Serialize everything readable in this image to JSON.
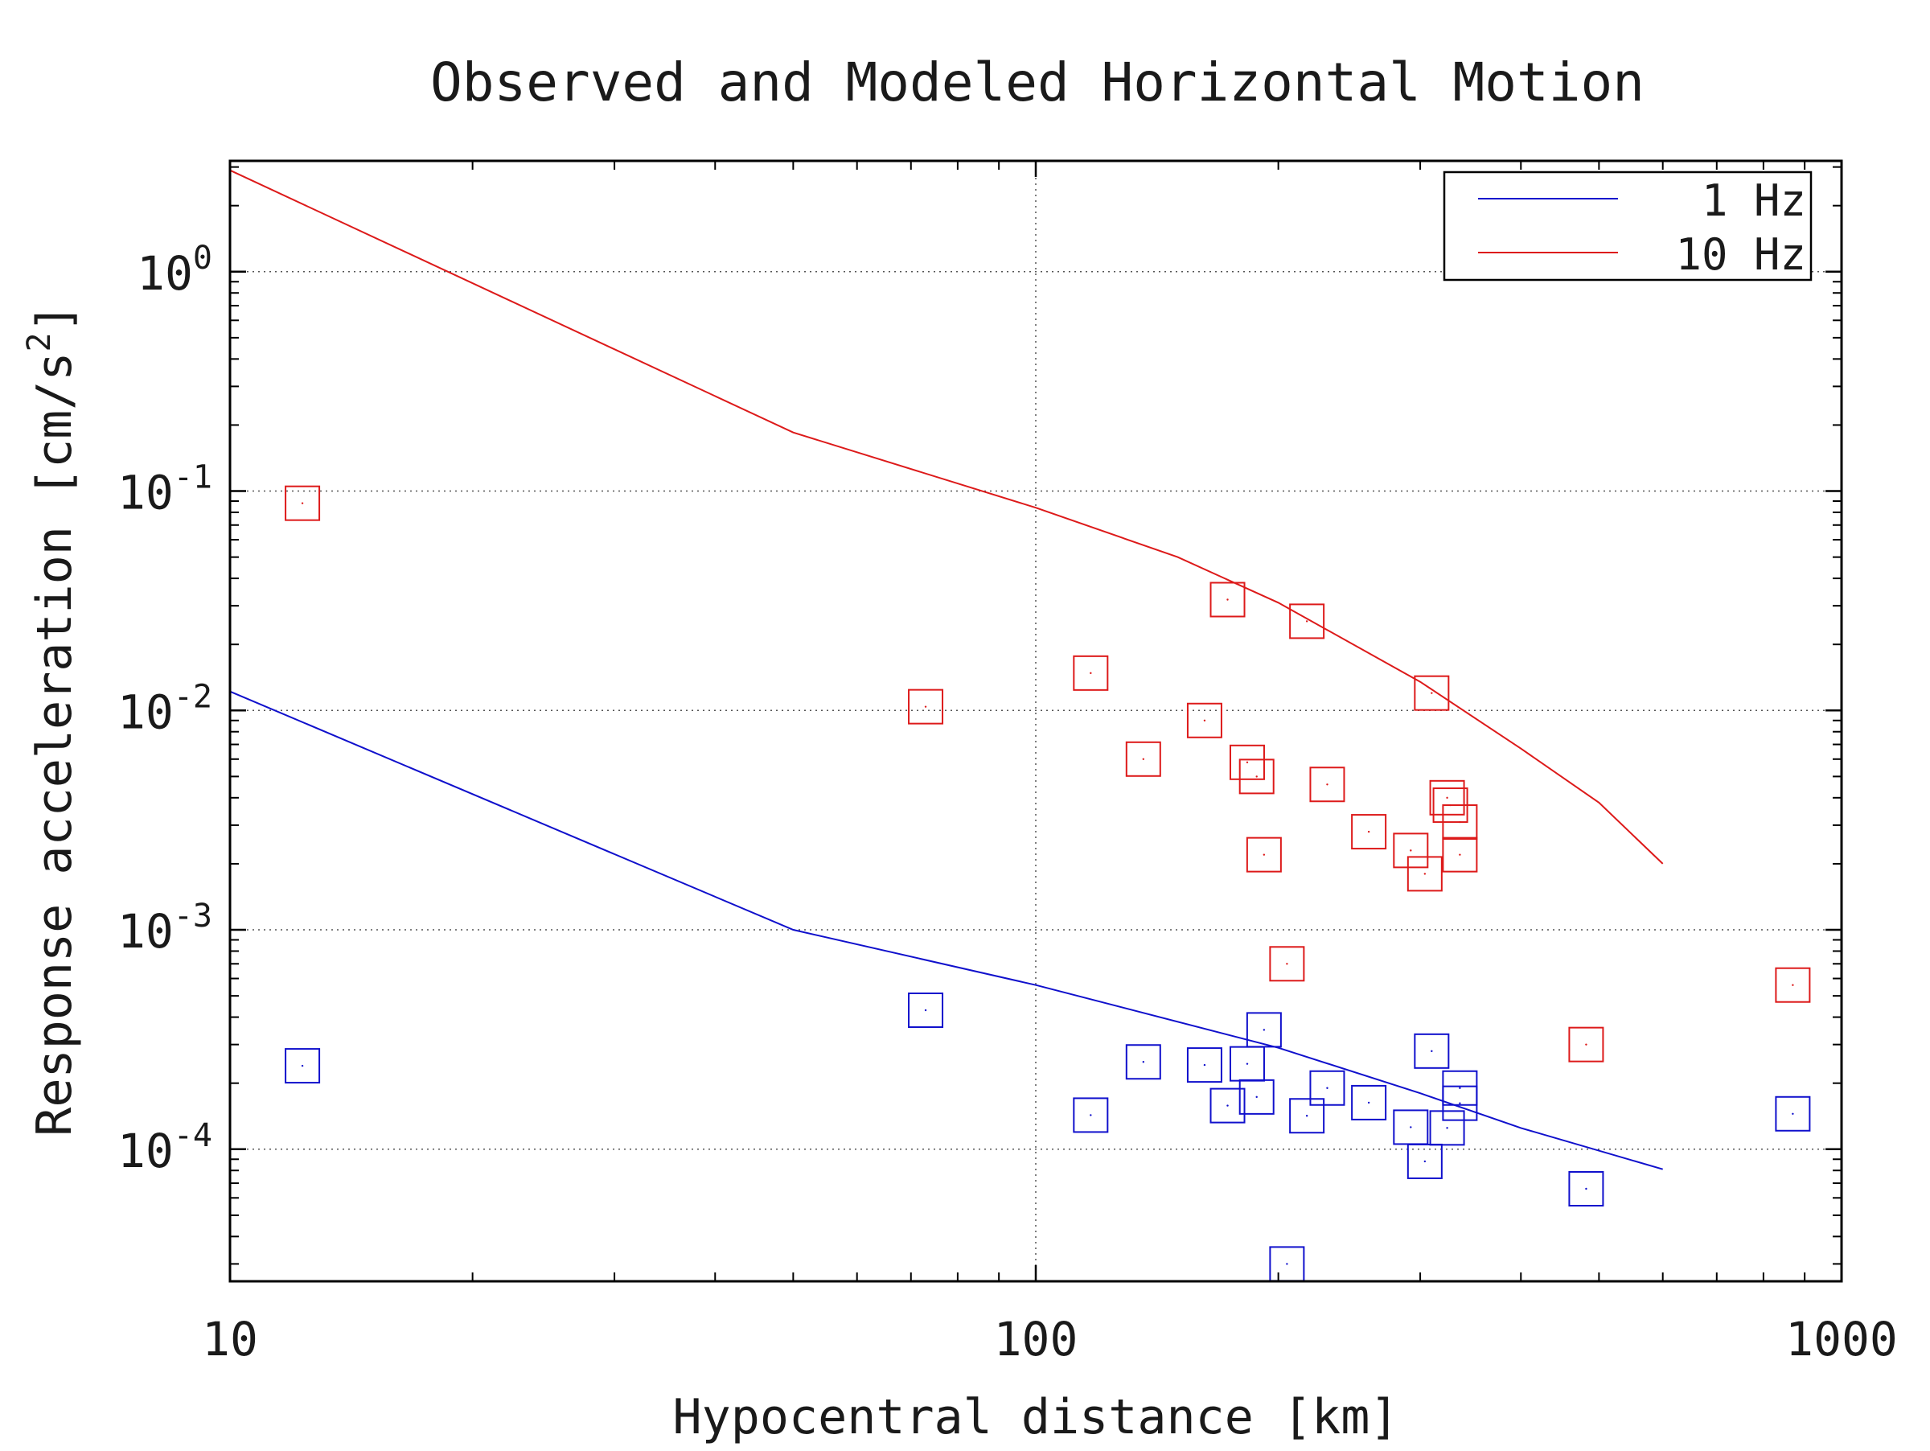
{
  "chart_data": {
    "type": "scatter",
    "title": "Observed and Modeled Horizontal Motion",
    "xlabel": "Hypocentral distance [km]",
    "ylabel": "Response acceleration [cm/s",
    "ylabel_sup": "2",
    "ylabel_close": "]",
    "x_scale": "log",
    "y_scale": "log",
    "xlim": [
      10,
      1000
    ],
    "ylim": [
      2.5e-05,
      3.2
    ],
    "x_ticks": [
      {
        "value": 10,
        "label": "10"
      },
      {
        "value": 100,
        "label": "100"
      },
      {
        "value": 1000,
        "label": "1000"
      }
    ],
    "y_ticks": [
      {
        "value": 1,
        "base": "10",
        "exp": "0"
      },
      {
        "value": 0.1,
        "base": "10",
        "exp": "-1"
      },
      {
        "value": 0.01,
        "base": "10",
        "exp": "-2"
      },
      {
        "value": 0.001,
        "base": "10",
        "exp": "-3"
      },
      {
        "value": 0.0001,
        "base": "10",
        "exp": "-4"
      }
    ],
    "grid": "dotted",
    "legend_position": "top-right",
    "series": [
      {
        "name": "1 Hz",
        "color": "#1010cc",
        "model": [
          [
            10,
            0.0122
          ],
          [
            50,
            0.001
          ],
          [
            100,
            0.00056
          ],
          [
            200,
            0.00029
          ],
          [
            300,
            0.00018
          ],
          [
            400,
            0.000125
          ],
          [
            600,
            8.1e-05
          ]
        ],
        "points": [
          [
            12.3,
            0.00024
          ],
          [
            73,
            0.00043
          ],
          [
            117,
            0.000143
          ],
          [
            136,
            0.00025
          ],
          [
            162,
            0.000242
          ],
          [
            173,
            0.000158
          ],
          [
            183,
            0.000245
          ],
          [
            188,
            0.000173
          ],
          [
            192,
            0.00035
          ],
          [
            205,
            3e-05
          ],
          [
            217,
            0.000142
          ],
          [
            230,
            0.00019
          ],
          [
            259,
            0.000163
          ],
          [
            292,
            0.000126
          ],
          [
            304,
            8.8e-05
          ],
          [
            310,
            0.00028
          ],
          [
            324,
            0.000125
          ],
          [
            336,
            0.00019
          ],
          [
            336,
            0.000162
          ],
          [
            482,
            6.6e-05
          ],
          [
            870,
            0.000145
          ]
        ]
      },
      {
        "name": "10 Hz",
        "color": "#dd1a1a",
        "model": [
          [
            10,
            2.9
          ],
          [
            50,
            0.185
          ],
          [
            100,
            0.084
          ],
          [
            150,
            0.05
          ],
          [
            200,
            0.031
          ],
          [
            300,
            0.0135
          ],
          [
            400,
            0.0067
          ],
          [
            500,
            0.0038
          ],
          [
            600,
            0.002
          ]
        ],
        "points": [
          [
            12.3,
            0.088
          ],
          [
            73,
            0.0104
          ],
          [
            117,
            0.0148
          ],
          [
            136,
            0.006
          ],
          [
            162,
            0.009
          ],
          [
            173,
            0.032
          ],
          [
            183,
            0.0058
          ],
          [
            188,
            0.005
          ],
          [
            192,
            0.0022
          ],
          [
            205,
            0.0007
          ],
          [
            217,
            0.0255
          ],
          [
            230,
            0.0046
          ],
          [
            259,
            0.0028
          ],
          [
            292,
            0.0023
          ],
          [
            304,
            0.0018
          ],
          [
            310,
            0.012
          ],
          [
            324,
            0.004
          ],
          [
            327,
            0.0037
          ],
          [
            336,
            0.0031
          ],
          [
            336,
            0.0022
          ],
          [
            482,
            0.0003
          ],
          [
            870,
            0.00056
          ]
        ]
      }
    ]
  }
}
